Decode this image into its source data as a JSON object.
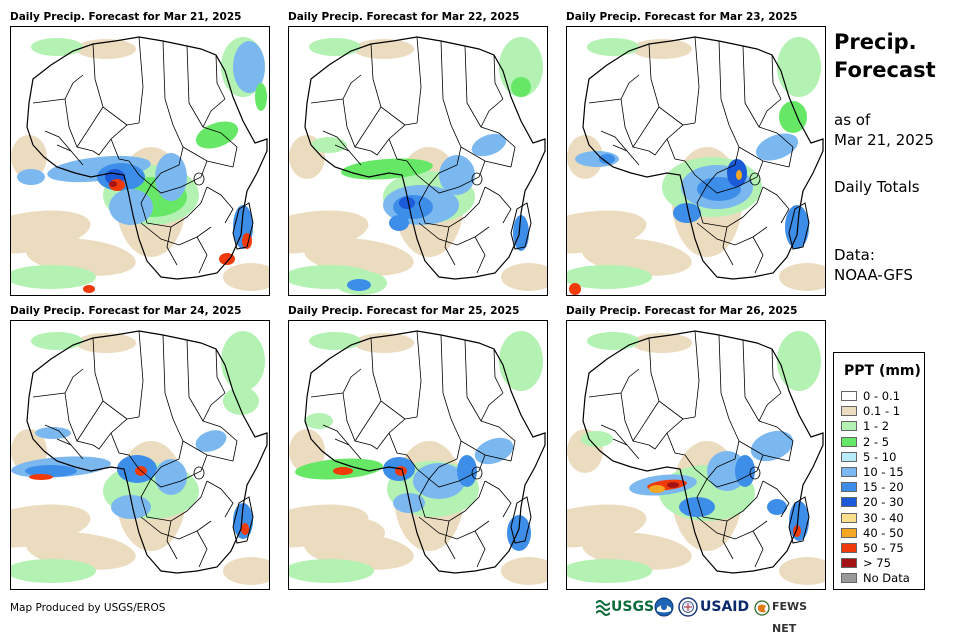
{
  "panels": [
    {
      "title": "Daily Precip. Forecast for Mar 21, 2025"
    },
    {
      "title": "Daily Precip. Forecast for Mar 22, 2025"
    },
    {
      "title": "Daily Precip. Forecast for Mar 23, 2025"
    },
    {
      "title": "Daily Precip. Forecast for Mar 24, 2025"
    },
    {
      "title": "Daily Precip. Forecast for Mar 25, 2025"
    },
    {
      "title": "Daily Precip. Forecast for Mar 26, 2025"
    }
  ],
  "side": {
    "title_line1": "Precip.",
    "title_line2": "Forecast",
    "asof_line1": "as of",
    "asof_line2": "Mar 21, 2025",
    "period": "Daily Totals",
    "data_line1": "Data:",
    "data_line2": "NOAA-GFS"
  },
  "legend": {
    "title": "PPT (mm)",
    "items": [
      {
        "label": "0 - 0.1",
        "color": "#ffffff"
      },
      {
        "label": "0.1 - 1",
        "color": "#ecdcbf"
      },
      {
        "label": "1 - 2",
        "color": "#b3f2b3"
      },
      {
        "label": "2 - 5",
        "color": "#66e866"
      },
      {
        "label": "5 - 10",
        "color": "#b8ecf8"
      },
      {
        "label": "10 - 15",
        "color": "#7cb8f0"
      },
      {
        "label": "15 - 20",
        "color": "#3d8ee8"
      },
      {
        "label": "20 - 30",
        "color": "#1a5ad8"
      },
      {
        "label": "30 - 40",
        "color": "#fae08c"
      },
      {
        "label": "40 - 50",
        "color": "#f5a623"
      },
      {
        "label": "50 - 75",
        "color": "#f03a0a"
      },
      {
        "label": "> 75",
        "color": "#a51414"
      },
      {
        "label": "No Data",
        "color": "#999999"
      }
    ]
  },
  "credit": "Map Produced by USGS/EROS",
  "logos": [
    {
      "name": "usgs-logo",
      "text": "USGS"
    },
    {
      "name": "noaa-logo",
      "text": ""
    },
    {
      "name": "usaid-seal",
      "text": ""
    },
    {
      "name": "usaid-logo",
      "text": "USAID"
    },
    {
      "name": "fewsnet-logo",
      "text": "FEWS NET"
    }
  ]
}
